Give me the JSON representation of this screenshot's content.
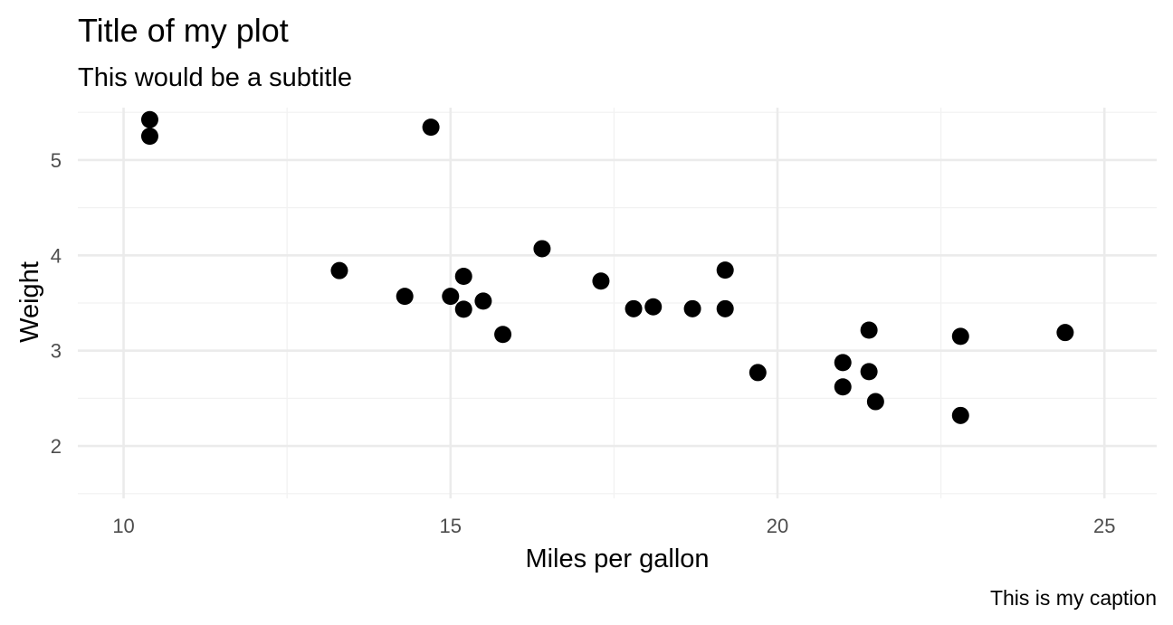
{
  "chart_data": {
    "type": "scatter",
    "title": "Title of my plot",
    "subtitle": "This would be a subtitle",
    "xlabel": "Miles per gallon",
    "ylabel": "Weight",
    "caption": "This is my caption",
    "xlim": [
      9.3,
      25.8
    ],
    "ylim": [
      1.45,
      5.55
    ],
    "x_ticks": [
      10,
      15,
      20,
      25
    ],
    "y_ticks": [
      2,
      3,
      4,
      5
    ],
    "x_minor_ticks": [
      12.5,
      17.5,
      22.5
    ],
    "y_minor_ticks": [
      1.5,
      2.5,
      3.5,
      4.5,
      5.5
    ],
    "grid": true,
    "point_color": "#000000",
    "points": [
      {
        "x": 10.4,
        "y": 5.424
      },
      {
        "x": 10.4,
        "y": 5.25
      },
      {
        "x": 14.7,
        "y": 5.345
      },
      {
        "x": 13.3,
        "y": 3.84
      },
      {
        "x": 14.3,
        "y": 3.57
      },
      {
        "x": 15.0,
        "y": 3.57
      },
      {
        "x": 15.2,
        "y": 3.78
      },
      {
        "x": 15.2,
        "y": 3.435
      },
      {
        "x": 15.5,
        "y": 3.52
      },
      {
        "x": 15.8,
        "y": 3.17
      },
      {
        "x": 16.4,
        "y": 4.07
      },
      {
        "x": 17.3,
        "y": 3.73
      },
      {
        "x": 17.8,
        "y": 3.44
      },
      {
        "x": 18.1,
        "y": 3.46
      },
      {
        "x": 18.7,
        "y": 3.44
      },
      {
        "x": 19.2,
        "y": 3.44
      },
      {
        "x": 19.2,
        "y": 3.845
      },
      {
        "x": 19.7,
        "y": 2.77
      },
      {
        "x": 21.0,
        "y": 2.62
      },
      {
        "x": 21.0,
        "y": 2.875
      },
      {
        "x": 21.4,
        "y": 3.215
      },
      {
        "x": 21.4,
        "y": 2.78
      },
      {
        "x": 21.5,
        "y": 2.465
      },
      {
        "x": 22.8,
        "y": 2.32
      },
      {
        "x": 22.8,
        "y": 3.15
      },
      {
        "x": 24.4,
        "y": 3.19
      }
    ]
  }
}
